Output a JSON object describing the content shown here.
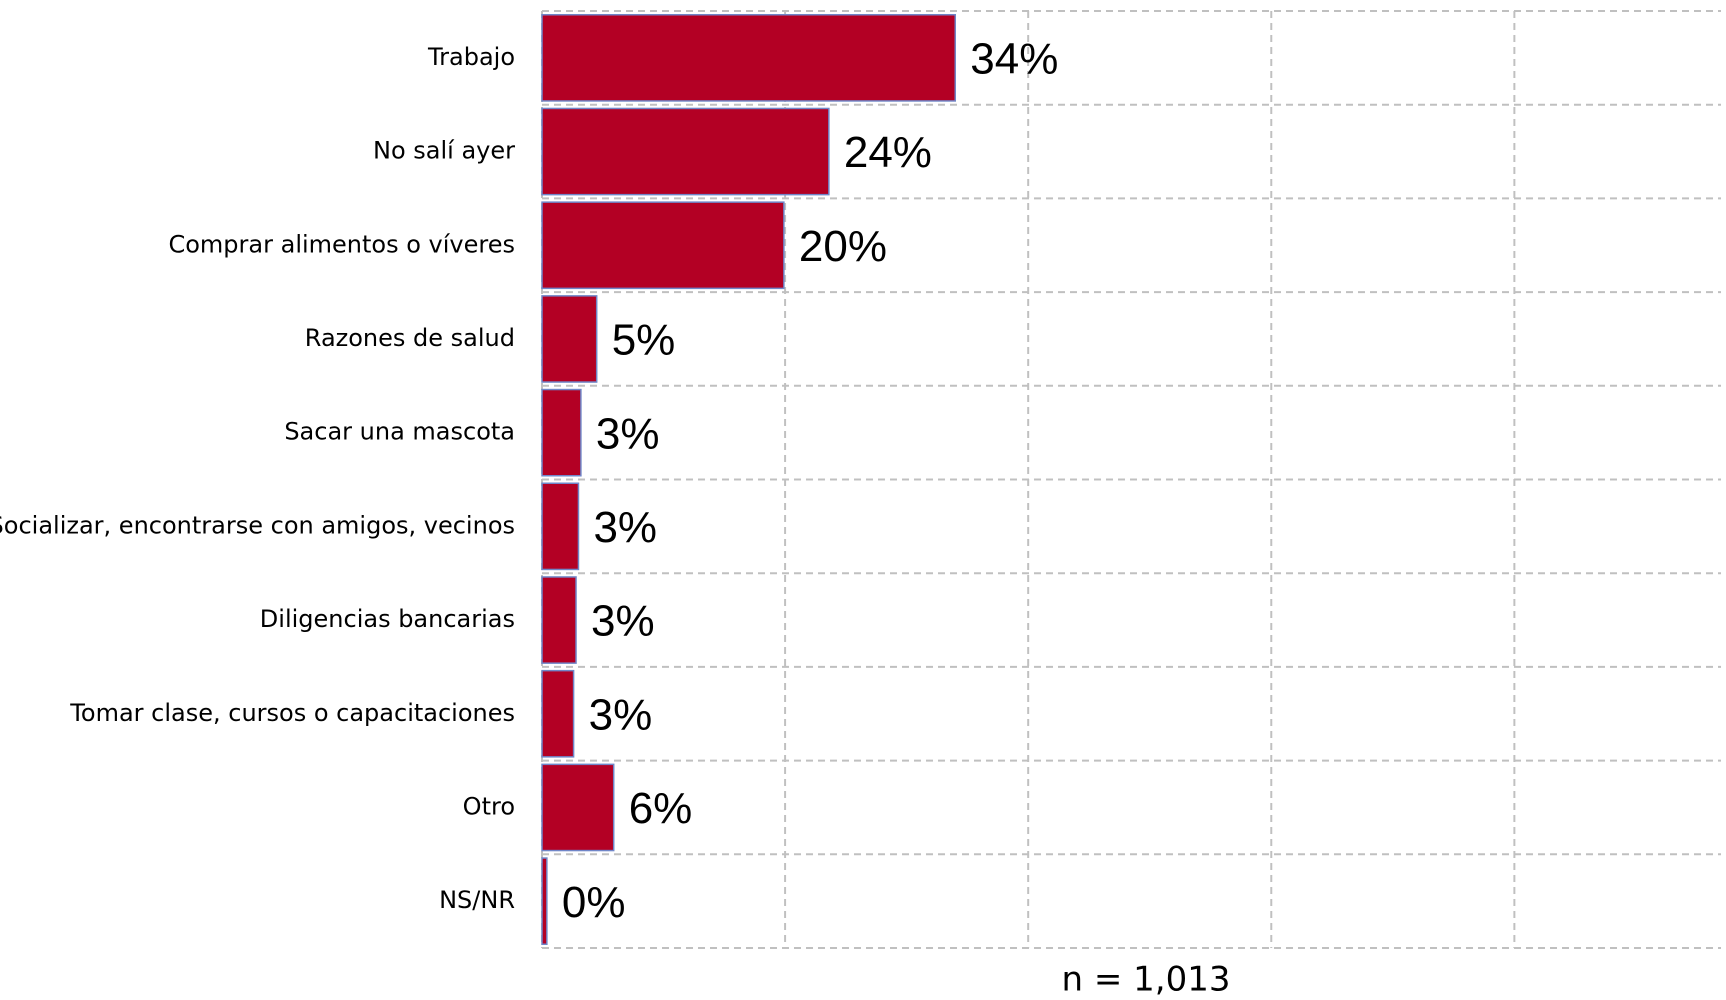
{
  "chart_data": {
    "type": "bar",
    "orientation": "horizontal",
    "categories": [
      "Trabajo",
      "No salí ayer",
      "Comprar alimentos o víveres",
      "Razones de salud",
      "Sacar una mascota",
      "Socializar, encontrarse con amigos, vecinos",
      "Diligencias bancarias",
      "Tomar clase, cursos o capacitaciones",
      "Otro",
      "NS/NR"
    ],
    "values": [
      34,
      23.6,
      19.9,
      4.5,
      3.2,
      3.0,
      2.8,
      2.6,
      5.9,
      0.4
    ],
    "value_labels": [
      "34%",
      "24%",
      "20%",
      "5%",
      "3%",
      "3%",
      "3%",
      "3%",
      "6%",
      "0%"
    ],
    "color": "#b30024",
    "xlim": [
      0,
      97
    ],
    "xticks": [
      0,
      20,
      40,
      60,
      80
    ],
    "grid": true,
    "annotation": "n = 1,013"
  }
}
